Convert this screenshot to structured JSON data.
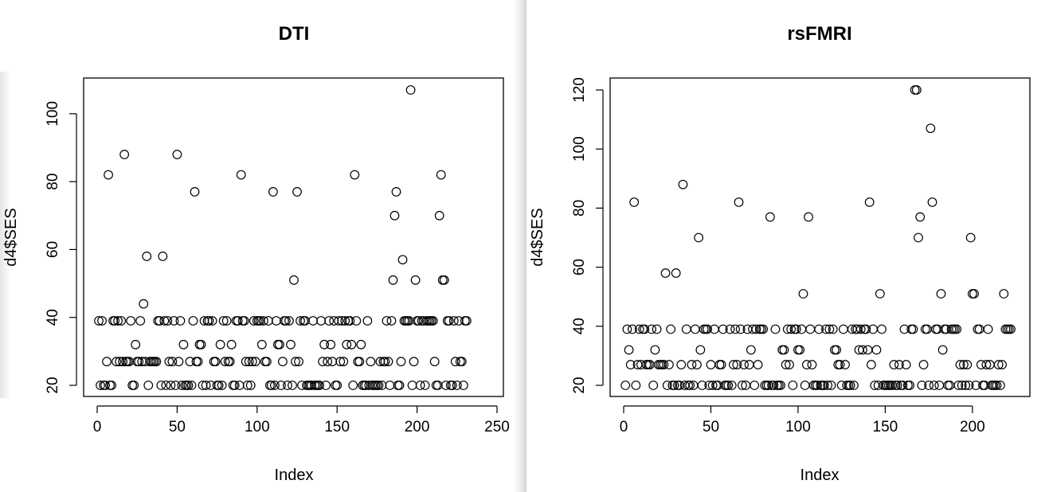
{
  "chart_data": [
    {
      "type": "scatter",
      "title": "DTI",
      "xlabel": "Index",
      "ylabel": "d4$SES",
      "xlim": [
        0,
        250
      ],
      "ylim": [
        20,
        107
      ],
      "x_ticks": [
        0,
        50,
        100,
        150,
        200,
        250
      ],
      "y_ticks": [
        20,
        40,
        60,
        80,
        100
      ],
      "grid": false,
      "legend": "none",
      "marker": "open-circle",
      "series": [
        {
          "y": [
            39,
            20,
            39,
            20,
            20,
            27,
            82,
            20,
            20,
            39,
            39,
            27,
            39,
            27,
            39,
            27,
            88,
            27,
            27,
            27,
            39,
            20,
            20,
            32,
            27,
            27,
            39,
            27,
            44,
            27,
            58,
            20,
            27,
            27,
            27,
            27,
            27,
            39,
            39,
            20,
            58,
            39,
            20,
            39,
            27,
            20,
            27,
            39,
            20,
            88,
            27,
            39,
            20,
            32,
            20,
            20,
            20,
            27,
            20,
            39,
            77,
            27,
            27,
            32,
            32,
            20,
            39,
            20,
            39,
            39,
            20,
            39,
            27,
            27,
            20,
            20,
            32,
            20,
            39,
            27,
            39,
            27,
            27,
            32,
            20,
            20,
            39,
            39,
            20,
            82,
            39,
            39,
            27,
            20,
            27,
            20,
            27,
            39,
            27,
            39,
            39,
            39,
            32,
            39,
            27,
            27,
            39,
            20,
            20,
            77,
            20,
            39,
            32,
            32,
            20,
            27,
            39,
            39,
            20,
            39,
            32,
            20,
            51,
            27,
            77,
            27,
            39,
            20,
            39,
            39,
            20,
            20,
            20,
            20,
            39,
            20,
            20,
            20,
            20,
            39,
            27,
            32,
            20,
            27,
            39,
            32,
            27,
            39,
            20,
            20,
            39,
            27,
            39,
            27,
            39,
            32,
            39,
            39,
            32,
            20,
            82,
            39,
            27,
            27,
            32,
            20,
            20,
            20,
            39,
            20,
            27,
            20,
            20,
            20,
            20,
            20,
            27,
            20,
            27,
            27,
            39,
            27,
            20,
            39,
            51,
            70,
            77,
            20,
            20,
            27,
            57,
            39,
            39,
            39,
            39,
            107,
            20,
            27,
            51,
            39,
            39,
            20,
            39,
            39,
            20,
            39,
            39,
            39,
            39,
            39,
            27,
            20,
            20,
            70,
            82,
            51,
            51,
            20,
            39,
            39,
            20,
            20,
            39,
            27,
            20,
            39,
            27,
            27,
            20,
            39,
            39
          ]
        }
      ]
    },
    {
      "type": "scatter",
      "title": "rsFMRI",
      "xlabel": "Index",
      "ylabel": "d4$SES",
      "xlim": [
        0,
        222
      ],
      "ylim": [
        20,
        120
      ],
      "x_ticks": [
        0,
        50,
        100,
        150,
        200
      ],
      "y_ticks": [
        20,
        40,
        60,
        80,
        100,
        120
      ],
      "grid": false,
      "legend": "none",
      "marker": "open-circle",
      "series": [
        {
          "y": [
            20,
            39,
            32,
            27,
            39,
            82,
            20,
            27,
            39,
            27,
            39,
            39,
            27,
            27,
            27,
            39,
            20,
            32,
            39,
            27,
            27,
            27,
            27,
            58,
            20,
            27,
            39,
            20,
            20,
            58,
            20,
            20,
            27,
            88,
            20,
            39,
            20,
            20,
            27,
            20,
            39,
            27,
            70,
            32,
            20,
            39,
            39,
            39,
            20,
            27,
            20,
            39,
            20,
            20,
            27,
            27,
            39,
            20,
            20,
            20,
            39,
            20,
            27,
            39,
            27,
            82,
            39,
            20,
            27,
            20,
            39,
            27,
            32,
            39,
            20,
            39,
            27,
            39,
            39,
            39,
            20,
            20,
            20,
            77,
            20,
            20,
            39,
            20,
            20,
            20,
            32,
            32,
            27,
            39,
            27,
            39,
            20,
            39,
            39,
            32,
            32,
            39,
            51,
            20,
            27,
            77,
            39,
            27,
            20,
            20,
            20,
            39,
            20,
            20,
            20,
            39,
            20,
            39,
            20,
            39,
            32,
            32,
            27,
            27,
            20,
            39,
            27,
            20,
            20,
            20,
            39,
            20,
            39,
            39,
            32,
            39,
            32,
            39,
            39,
            32,
            82,
            27,
            39,
            20,
            32,
            20,
            51,
            39,
            20,
            20,
            20,
            20,
            20,
            20,
            27,
            20,
            20,
            27,
            20,
            20,
            39,
            27,
            20,
            20,
            39,
            39,
            120,
            120,
            70,
            77,
            20,
            27,
            39,
            39,
            20,
            107,
            82,
            20,
            39,
            39,
            20,
            51,
            32,
            39,
            39,
            20,
            20,
            39,
            39,
            39,
            39,
            20,
            27,
            20,
            27,
            20,
            27,
            20,
            70,
            51,
            51,
            20,
            39,
            39,
            27,
            20,
            20,
            27,
            39,
            27,
            20,
            20,
            20,
            20,
            27,
            20,
            27,
            51,
            39,
            39,
            39,
            39
          ]
        }
      ]
    }
  ]
}
